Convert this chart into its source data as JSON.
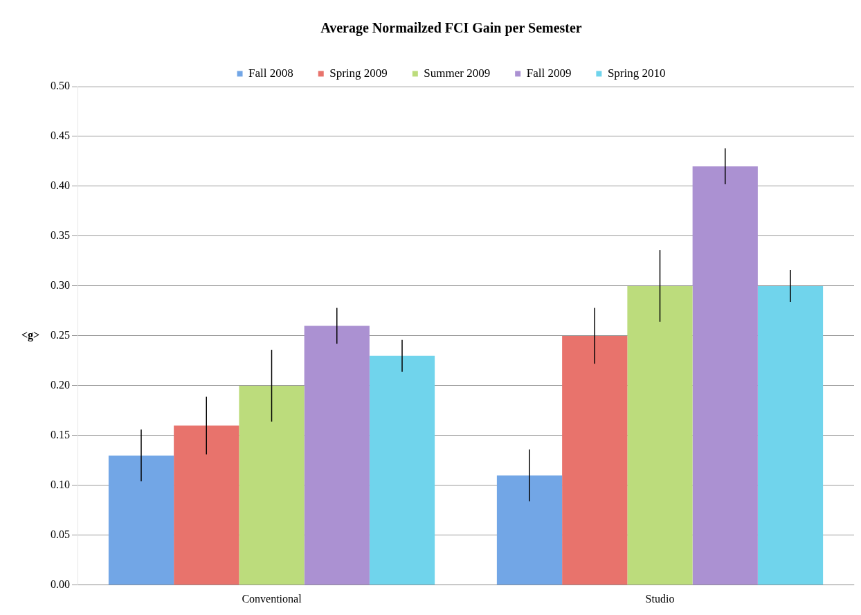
{
  "chart_data": {
    "type": "bar",
    "title": "Average Normailzed FCI Gain per Semester",
    "ylabel": "<g>",
    "categories": [
      "Conventional",
      "Studio"
    ],
    "series": [
      {
        "name": "Fall 2008",
        "color": "#72a6e6",
        "values": [
          0.13,
          0.11
        ],
        "errors": [
          0.026,
          0.026
        ]
      },
      {
        "name": "Spring 2009",
        "color": "#e8736c",
        "values": [
          0.16,
          0.25
        ],
        "errors": [
          0.029,
          0.028
        ]
      },
      {
        "name": "Summer 2009",
        "color": "#bcdc7c",
        "values": [
          0.2,
          0.3
        ],
        "errors": [
          0.036,
          0.036
        ]
      },
      {
        "name": "Fall 2009",
        "color": "#ab91d2",
        "values": [
          0.26,
          0.42
        ],
        "errors": [
          0.018,
          0.018
        ]
      },
      {
        "name": "Spring 2010",
        "color": "#70d4ec",
        "values": [
          0.23,
          0.3
        ],
        "errors": [
          0.016,
          0.016
        ]
      }
    ],
    "ylim": [
      0,
      0.5
    ],
    "yticks": [
      {
        "value": 0,
        "label": "0.00"
      },
      {
        "value": 0.05,
        "label": "0.05"
      },
      {
        "value": 0.1,
        "label": "0.10"
      },
      {
        "value": 0.15,
        "label": "0.15"
      },
      {
        "value": 0.2,
        "label": "0.20"
      },
      {
        "value": 0.25,
        "label": "0.25"
      },
      {
        "value": 0.3,
        "label": "0.30"
      },
      {
        "value": 0.35,
        "label": "0.35"
      },
      {
        "value": 0.4,
        "label": "0.40"
      },
      {
        "value": 0.45,
        "label": "0.45"
      },
      {
        "value": 0.5,
        "label": "0.50"
      }
    ],
    "grid": "y",
    "legend": "top"
  }
}
